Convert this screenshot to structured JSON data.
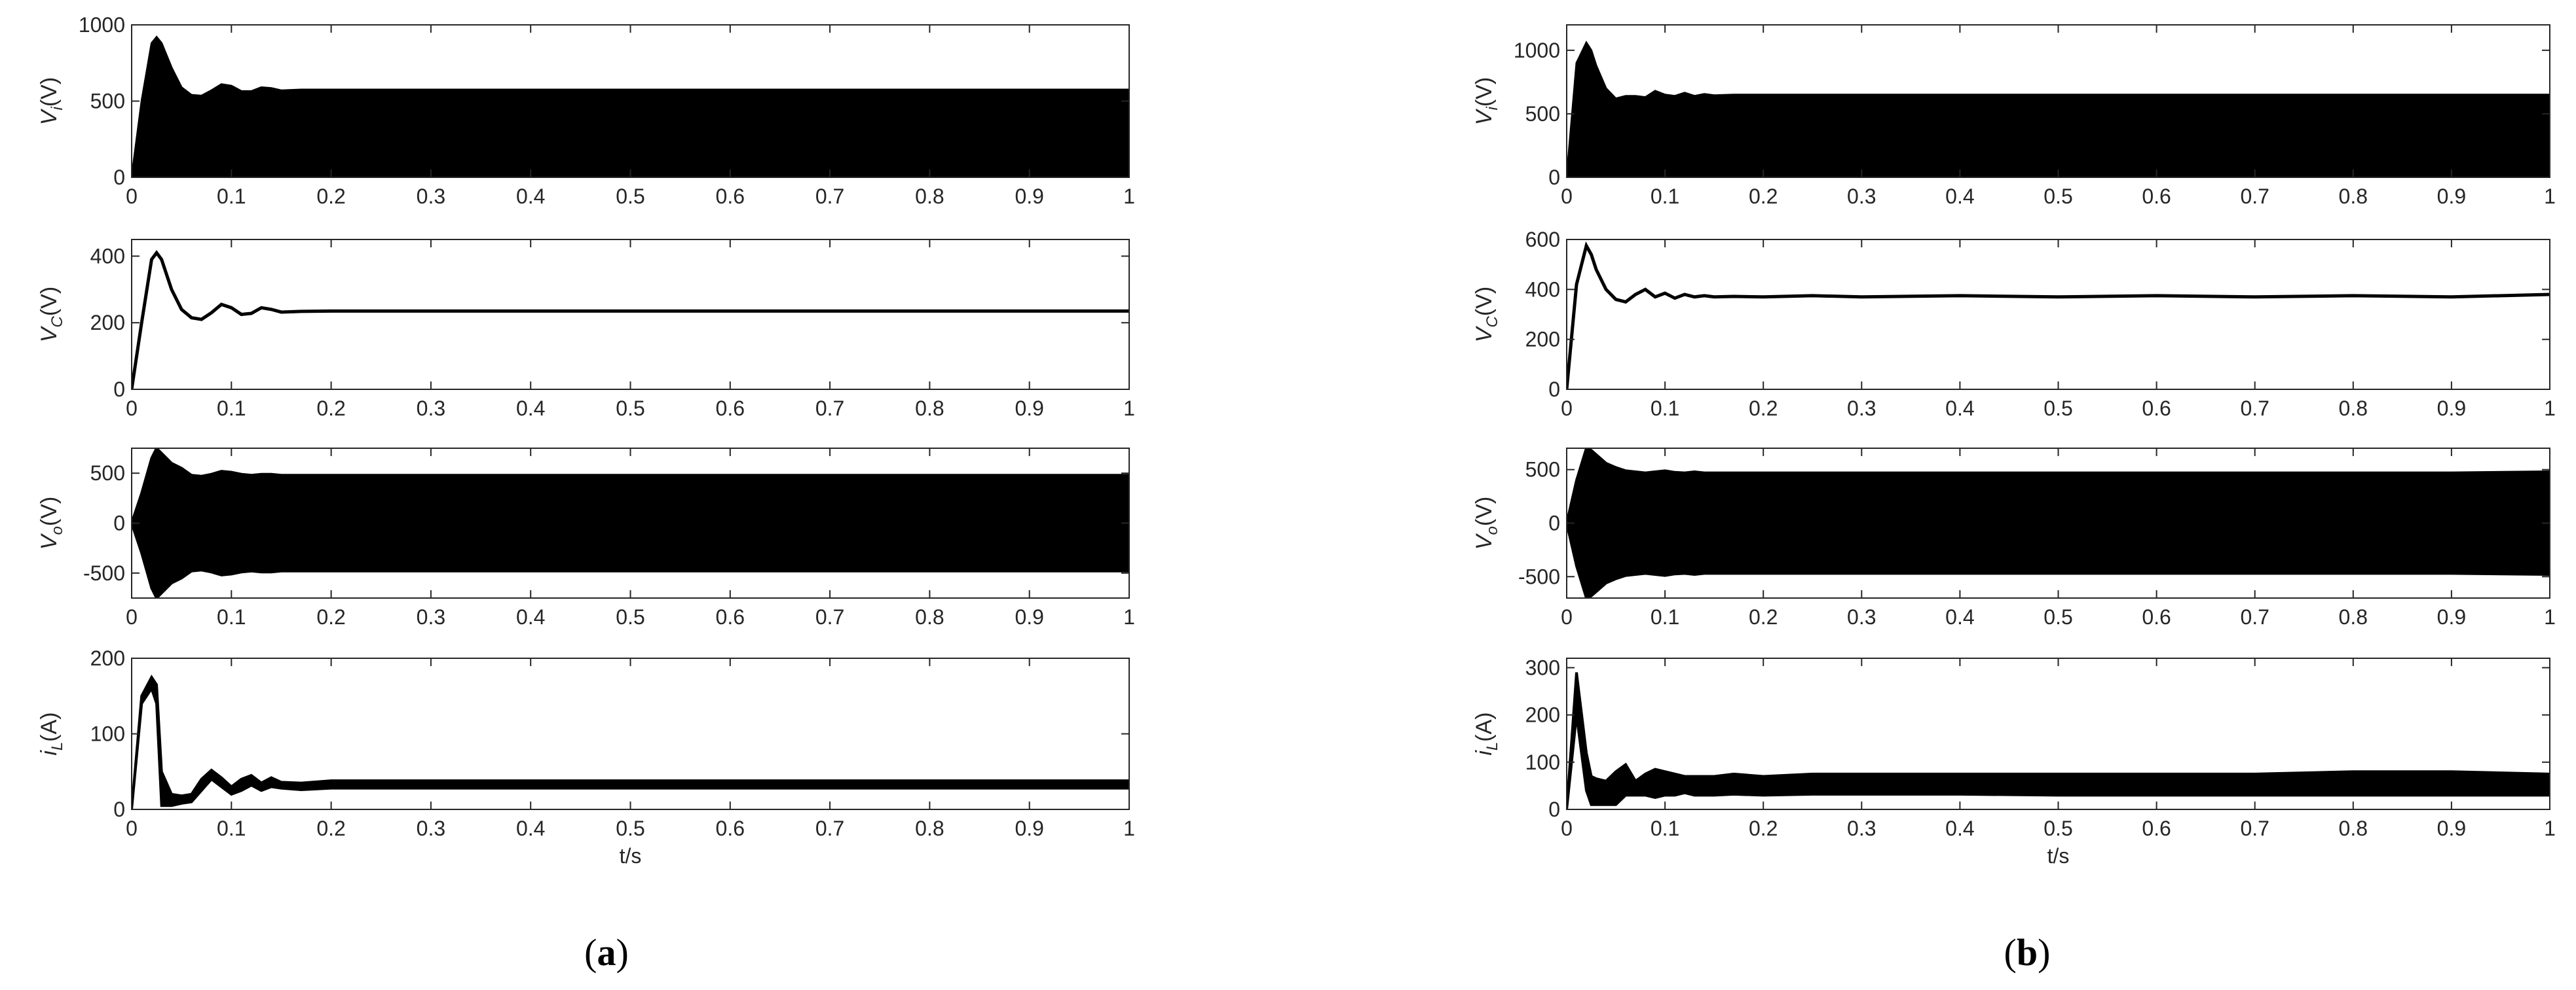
{
  "chart_data": [
    {
      "type": "area",
      "ylabel": {
        "symbol": "V",
        "subscript": "i",
        "unit": "(V)"
      },
      "x": [
        0,
        0.01,
        0.02,
        0.025,
        0.03,
        0.04,
        0.05,
        0.06,
        0.07,
        0.08,
        0.09,
        0.1,
        0.11,
        0.12,
        0.13,
        0.14,
        0.15,
        0.17,
        0.2,
        0.25,
        0.3,
        0.4,
        0.5,
        0.6,
        0.7,
        0.8,
        0.9,
        1
      ],
      "series": [
        {
          "color": "#000000",
          "values": [
            0,
            500,
            880,
            920,
            880,
            720,
            590,
            540,
            535,
            570,
            610,
            600,
            565,
            565,
            590,
            585,
            570,
            575,
            575,
            575,
            575,
            575,
            575,
            575,
            575,
            575,
            575,
            575
          ]
        }
      ],
      "xlim": [
        0,
        1
      ],
      "xticks": [
        0,
        0.1,
        0.2,
        0.3,
        0.4,
        0.5,
        0.6,
        0.7,
        0.8,
        0.9,
        1
      ],
      "ylim": [
        0,
        1000
      ],
      "yticks": [
        0,
        500,
        1000
      ]
    },
    {
      "type": "line",
      "ylabel": {
        "symbol": "V",
        "subscript": "C",
        "unit": "(V)"
      },
      "x": [
        0,
        0.01,
        0.02,
        0.025,
        0.03,
        0.04,
        0.05,
        0.06,
        0.07,
        0.08,
        0.09,
        0.1,
        0.11,
        0.12,
        0.13,
        0.14,
        0.15,
        0.17,
        0.2,
        0.25,
        0.3,
        0.4,
        0.5,
        0.6,
        0.7,
        0.8,
        0.9,
        1
      ],
      "series": [
        {
          "color": "#000000",
          "values": [
            0,
            200,
            390,
            410,
            390,
            300,
            240,
            215,
            210,
            230,
            255,
            245,
            225,
            228,
            245,
            240,
            232,
            234,
            235,
            235,
            235,
            235,
            235,
            235,
            235,
            235,
            235,
            235
          ]
        }
      ],
      "xlim": [
        0,
        1
      ],
      "xticks": [
        0,
        0.1,
        0.2,
        0.3,
        0.4,
        0.5,
        0.6,
        0.7,
        0.8,
        0.9,
        1
      ],
      "ylim": [
        0,
        450
      ],
      "yticks": [
        0,
        200,
        400
      ]
    },
    {
      "type": "band",
      "ylabel": {
        "symbol": "V",
        "subscript": "o",
        "unit": "(V)"
      },
      "x": [
        0,
        0.01,
        0.02,
        0.025,
        0.03,
        0.04,
        0.05,
        0.06,
        0.07,
        0.08,
        0.09,
        0.1,
        0.11,
        0.12,
        0.13,
        0.14,
        0.15,
        0.17,
        0.2,
        0.25,
        0.3,
        0.4,
        0.5,
        0.6,
        0.7,
        0.8,
        0.9,
        1
      ],
      "series": [
        {
          "color": "#000000",
          "values": [
            0,
            300,
            650,
            750,
            700,
            600,
            550,
            480,
            470,
            490,
            520,
            510,
            490,
            480,
            490,
            490,
            480,
            480,
            480,
            480,
            480,
            480,
            480,
            480,
            480,
            480,
            480,
            480
          ]
        },
        {
          "color": "#000000",
          "values": [
            0,
            -300,
            -650,
            -750,
            -700,
            -600,
            -550,
            -480,
            -470,
            -490,
            -520,
            -510,
            -490,
            -480,
            -490,
            -490,
            -480,
            -480,
            -480,
            -480,
            -480,
            -480,
            -480,
            -480,
            -480,
            -480,
            -480,
            -480
          ]
        }
      ],
      "xlim": [
        0,
        1
      ],
      "xticks": [
        0,
        0.1,
        0.2,
        0.3,
        0.4,
        0.5,
        0.6,
        0.7,
        0.8,
        0.9,
        1
      ],
      "ylim": [
        -750,
        750
      ],
      "yticks": [
        -500,
        0,
        500
      ]
    },
    {
      "type": "band",
      "ylabel": {
        "symbol": "i",
        "subscript": "L",
        "unit": "(A)"
      },
      "xlabel": "t/s",
      "x": [
        0,
        0.01,
        0.02,
        0.025,
        0.03,
        0.04,
        0.05,
        0.06,
        0.07,
        0.08,
        0.09,
        0.1,
        0.11,
        0.12,
        0.13,
        0.14,
        0.15,
        0.17,
        0.2,
        0.25,
        0.3,
        0.4,
        0.5,
        0.6,
        0.7,
        0.8,
        0.9,
        1
      ],
      "series": [
        {
          "color": "#000000",
          "values": [
            0,
            150,
            175,
            165,
            50,
            20,
            18,
            20,
            40,
            52,
            42,
            30,
            40,
            45,
            35,
            42,
            36,
            35,
            38,
            38,
            38,
            38,
            38,
            38,
            38,
            38,
            38,
            38
          ]
        },
        {
          "color": "#000000",
          "values": [
            0,
            140,
            160,
            140,
            5,
            5,
            8,
            10,
            25,
            40,
            30,
            20,
            25,
            32,
            25,
            30,
            28,
            26,
            28,
            28,
            28,
            28,
            28,
            28,
            28,
            28,
            28,
            28
          ]
        }
      ],
      "xlim": [
        0,
        1
      ],
      "xticks": [
        0,
        0.1,
        0.2,
        0.3,
        0.4,
        0.5,
        0.6,
        0.7,
        0.8,
        0.9,
        1
      ],
      "ylim": [
        0,
        200
      ],
      "yticks": [
        0,
        100,
        200
      ]
    },
    {
      "type": "area",
      "ylabel": {
        "symbol": "V",
        "subscript": "i",
        "unit": "(V)"
      },
      "x": [
        0,
        0.01,
        0.02,
        0.025,
        0.03,
        0.04,
        0.05,
        0.06,
        0.07,
        0.08,
        0.09,
        0.1,
        0.11,
        0.12,
        0.13,
        0.14,
        0.15,
        0.17,
        0.2,
        0.25,
        0.3,
        0.4,
        0.5,
        0.6,
        0.7,
        0.8,
        0.9,
        1
      ],
      "series": [
        {
          "color": "#000000",
          "values": [
            0,
            900,
            1060,
            1000,
            880,
            700,
            620,
            640,
            640,
            630,
            680,
            650,
            640,
            665,
            640,
            655,
            645,
            650,
            650,
            650,
            650,
            650,
            650,
            650,
            650,
            650,
            650,
            650
          ]
        }
      ],
      "xlim": [
        0,
        1
      ],
      "xticks": [
        0,
        0.1,
        0.2,
        0.3,
        0.4,
        0.5,
        0.6,
        0.7,
        0.8,
        0.9,
        1
      ],
      "ylim": [
        0,
        1200
      ],
      "yticks": [
        0,
        500,
        1000
      ]
    },
    {
      "type": "line",
      "ylabel": {
        "symbol": "V",
        "subscript": "C",
        "unit": "(V)"
      },
      "x": [
        0,
        0.01,
        0.02,
        0.025,
        0.03,
        0.04,
        0.05,
        0.06,
        0.07,
        0.08,
        0.09,
        0.1,
        0.11,
        0.12,
        0.13,
        0.14,
        0.15,
        0.17,
        0.2,
        0.25,
        0.3,
        0.4,
        0.5,
        0.6,
        0.7,
        0.8,
        0.9,
        1
      ],
      "series": [
        {
          "color": "#000000",
          "values": [
            0,
            420,
            575,
            540,
            480,
            400,
            360,
            350,
            380,
            400,
            370,
            385,
            365,
            380,
            370,
            375,
            370,
            372,
            370,
            375,
            370,
            375,
            370,
            375,
            370,
            375,
            370,
            380
          ]
        }
      ],
      "xlim": [
        0,
        1
      ],
      "xticks": [
        0,
        0.1,
        0.2,
        0.3,
        0.4,
        0.5,
        0.6,
        0.7,
        0.8,
        0.9,
        1
      ],
      "ylim": [
        0,
        600
      ],
      "yticks": [
        0,
        200,
        400,
        600
      ]
    },
    {
      "type": "band",
      "ylabel": {
        "symbol": "V",
        "subscript": "o",
        "unit": "(V)"
      },
      "x": [
        0,
        0.01,
        0.02,
        0.025,
        0.03,
        0.04,
        0.05,
        0.06,
        0.07,
        0.08,
        0.09,
        0.1,
        0.11,
        0.12,
        0.13,
        0.14,
        0.15,
        0.17,
        0.2,
        0.25,
        0.3,
        0.4,
        0.5,
        0.6,
        0.7,
        0.8,
        0.9,
        1
      ],
      "series": [
        {
          "color": "#000000",
          "values": [
            0,
            400,
            700,
            680,
            640,
            560,
            520,
            490,
            480,
            470,
            480,
            490,
            475,
            470,
            480,
            470,
            470,
            470,
            470,
            470,
            470,
            470,
            470,
            470,
            470,
            470,
            470,
            480
          ]
        },
        {
          "color": "#000000",
          "values": [
            0,
            -400,
            -700,
            -680,
            -640,
            -560,
            -520,
            -490,
            -480,
            -470,
            -480,
            -490,
            -475,
            -470,
            -480,
            -470,
            -470,
            -470,
            -470,
            -470,
            -470,
            -470,
            -470,
            -470,
            -470,
            -470,
            -470,
            -480
          ]
        }
      ],
      "xlim": [
        0,
        1
      ],
      "xticks": [
        0,
        0.1,
        0.2,
        0.3,
        0.4,
        0.5,
        0.6,
        0.7,
        0.8,
        0.9,
        1
      ],
      "ylim": [
        -700,
        700
      ],
      "yticks": [
        -500,
        0,
        500
      ]
    },
    {
      "type": "band",
      "ylabel": {
        "symbol": "i",
        "subscript": "L",
        "unit": "(A)"
      },
      "xlabel": "t/s",
      "x": [
        0,
        0.01,
        0.02,
        0.025,
        0.03,
        0.04,
        0.05,
        0.06,
        0.07,
        0.08,
        0.09,
        0.1,
        0.11,
        0.12,
        0.13,
        0.14,
        0.15,
        0.17,
        0.2,
        0.25,
        0.3,
        0.4,
        0.5,
        0.6,
        0.7,
        0.8,
        0.9,
        1
      ],
      "series": [
        {
          "color": "#000000",
          "values": [
            0,
            290,
            120,
            70,
            65,
            60,
            80,
            95,
            60,
            75,
            85,
            80,
            75,
            70,
            70,
            70,
            70,
            75,
            70,
            75,
            75,
            75,
            75,
            75,
            75,
            80,
            80,
            75
          ]
        },
        {
          "color": "#000000",
          "values": [
            0,
            200,
            40,
            10,
            10,
            10,
            10,
            30,
            30,
            30,
            25,
            30,
            30,
            35,
            30,
            30,
            30,
            32,
            30,
            32,
            32,
            32,
            30,
            30,
            30,
            30,
            30,
            30
          ]
        }
      ],
      "xlim": [
        0,
        1
      ],
      "xticks": [
        0,
        0.1,
        0.2,
        0.3,
        0.4,
        0.5,
        0.6,
        0.7,
        0.8,
        0.9,
        1
      ],
      "ylim": [
        0,
        320
      ],
      "yticks": [
        0,
        100,
        200,
        300
      ]
    }
  ],
  "panels": [
    {
      "label": [
        "(",
        "a",
        ")"
      ]
    },
    {
      "label": [
        "(",
        "b",
        ")"
      ]
    }
  ]
}
